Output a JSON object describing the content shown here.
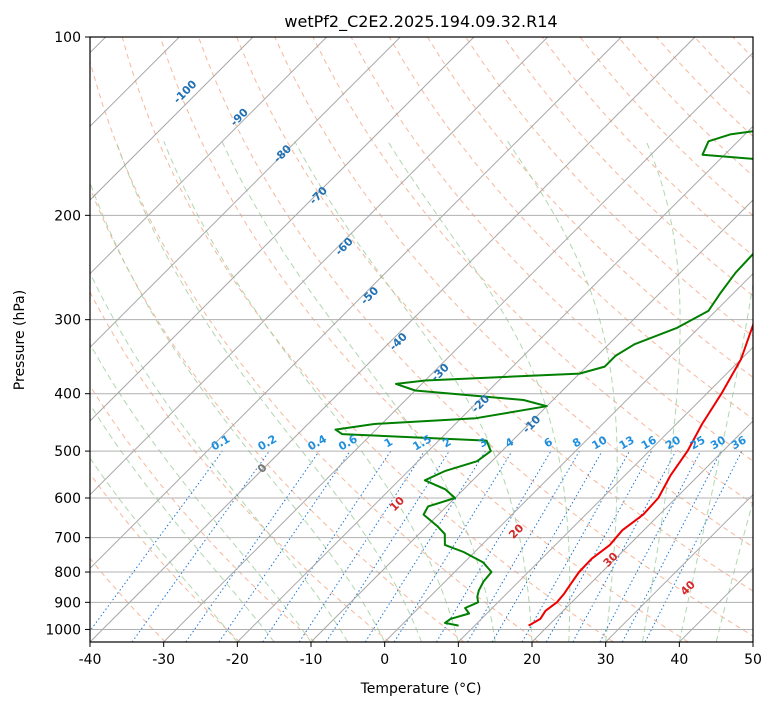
{
  "chart_data": {
    "type": "line",
    "title": "wetPf2_C2E2.2025.194.09.32.R14",
    "xlabel": "Temperature (°C)",
    "ylabel": "Pressure (hPa)",
    "xlim": [
      -40,
      50
    ],
    "ylim": [
      1050,
      100
    ],
    "y_scale": "log",
    "grid": true,
    "x_ticks": [
      "-40",
      "-30",
      "-20",
      "-10",
      "0",
      "10",
      "20",
      "30",
      "40",
      "50"
    ],
    "y_ticks": [
      "100",
      "200",
      "300",
      "400",
      "500",
      "600",
      "700",
      "800",
      "900",
      "1000"
    ],
    "isotherm_labels": [
      "-100",
      "-90",
      "-80",
      "-70",
      "-60",
      "-50",
      "-40",
      "-30",
      "-20",
      "-10"
    ],
    "mixing_ratio_labels": [
      "0.1",
      "0.2",
      "0.4",
      "0.6",
      "1",
      "1.5",
      "2",
      "3",
      "4",
      "6",
      "8",
      "10",
      "13",
      "16",
      "20",
      "25",
      "30",
      "36"
    ],
    "moist_adiabat_labels": [
      "0",
      "10",
      "20",
      "30",
      "40"
    ],
    "series": [
      {
        "color": "#ee0000",
        "points": [
          {
            "p": 985,
            "t": 17.3
          },
          {
            "p": 960,
            "t": 18.0
          },
          {
            "p": 930,
            "t": 17.6
          },
          {
            "p": 900,
            "t": 18.0
          },
          {
            "p": 870,
            "t": 17.8
          },
          {
            "p": 840,
            "t": 17.4
          },
          {
            "p": 800,
            "t": 16.9
          },
          {
            "p": 760,
            "t": 16.8
          },
          {
            "p": 720,
            "t": 17.4
          },
          {
            "p": 680,
            "t": 17.1
          },
          {
            "p": 640,
            "t": 17.8
          },
          {
            "p": 600,
            "t": 17.6
          },
          {
            "p": 550,
            "t": 16.2
          },
          {
            "p": 500,
            "t": 15.2
          },
          {
            "p": 450,
            "t": 13.5
          },
          {
            "p": 400,
            "t": 12.0
          },
          {
            "p": 350,
            "t": 10.0
          },
          {
            "p": 300,
            "t": 6.5
          },
          {
            "p": 250,
            "t": 2.8
          },
          {
            "p": 215,
            "t": 0.6
          },
          {
            "p": 195,
            "t": 0.2
          },
          {
            "p": 185,
            "t": 1.0
          },
          {
            "p": 175,
            "t": 3.0
          },
          {
            "p": 165,
            "t": 6.5
          },
          {
            "p": 155,
            "t": 9.5
          },
          {
            "p": 145,
            "t": 10.5
          },
          {
            "p": 135,
            "t": 12.0
          },
          {
            "p": 125,
            "t": 15.5
          },
          {
            "p": 115,
            "t": 18.5
          },
          {
            "p": 108,
            "t": 20.5
          },
          {
            "p": 100,
            "t": 21.5
          }
        ]
      },
      {
        "color": "#007f00",
        "points": [
          {
            "p": 985,
            "t": 7.8
          },
          {
            "p": 975,
            "t": 5.6
          },
          {
            "p": 960,
            "t": 5.8
          },
          {
            "p": 940,
            "t": 7.6
          },
          {
            "p": 920,
            "t": 6.3
          },
          {
            "p": 900,
            "t": 7.3
          },
          {
            "p": 880,
            "t": 6.4
          },
          {
            "p": 860,
            "t": 5.8
          },
          {
            "p": 830,
            "t": 5.2
          },
          {
            "p": 800,
            "t": 5.0
          },
          {
            "p": 770,
            "t": 2.5
          },
          {
            "p": 740,
            "t": -1.5
          },
          {
            "p": 720,
            "t": -5.0
          },
          {
            "p": 690,
            "t": -6.5
          },
          {
            "p": 670,
            "t": -8.5
          },
          {
            "p": 640,
            "t": -12.0
          },
          {
            "p": 620,
            "t": -12.5
          },
          {
            "p": 600,
            "t": -10.0
          },
          {
            "p": 580,
            "t": -12.5
          },
          {
            "p": 560,
            "t": -16.5
          },
          {
            "p": 540,
            "t": -15.0
          },
          {
            "p": 520,
            "t": -12.0
          },
          {
            "p": 500,
            "t": -11.5
          },
          {
            "p": 480,
            "t": -13.5
          },
          {
            "p": 468,
            "t": -34.0
          },
          {
            "p": 460,
            "t": -35.5
          },
          {
            "p": 450,
            "t": -31.0
          },
          {
            "p": 440,
            "t": -18.0
          },
          {
            "p": 420,
            "t": -10.0
          },
          {
            "p": 410,
            "t": -14.0
          },
          {
            "p": 395,
            "t": -30.0
          },
          {
            "p": 385,
            "t": -33.5
          },
          {
            "p": 380,
            "t": -30.0
          },
          {
            "p": 370,
            "t": -10.0
          },
          {
            "p": 360,
            "t": -7.5
          },
          {
            "p": 345,
            "t": -7.5
          },
          {
            "p": 330,
            "t": -6.5
          },
          {
            "p": 310,
            "t": -3.0
          },
          {
            "p": 290,
            "t": -1.0
          },
          {
            "p": 270,
            "t": -1.8
          },
          {
            "p": 250,
            "t": -2.5
          },
          {
            "p": 230,
            "t": -2.7
          },
          {
            "p": 210,
            "t": -2.0
          },
          {
            "p": 190,
            "t": -3.5
          },
          {
            "p": 170,
            "t": -6.0
          },
          {
            "p": 162,
            "t": -11.5
          },
          {
            "p": 158,
            "t": -23.0
          },
          {
            "p": 150,
            "t": -24.0
          },
          {
            "p": 146,
            "t": -22.0
          },
          {
            "p": 140,
            "t": -13.0
          },
          {
            "p": 130,
            "t": -7.0
          },
          {
            "p": 120,
            "t": -5.0
          },
          {
            "p": 110,
            "t": -2.5
          },
          {
            "p": 100,
            "t": 0.5
          }
        ]
      }
    ]
  }
}
